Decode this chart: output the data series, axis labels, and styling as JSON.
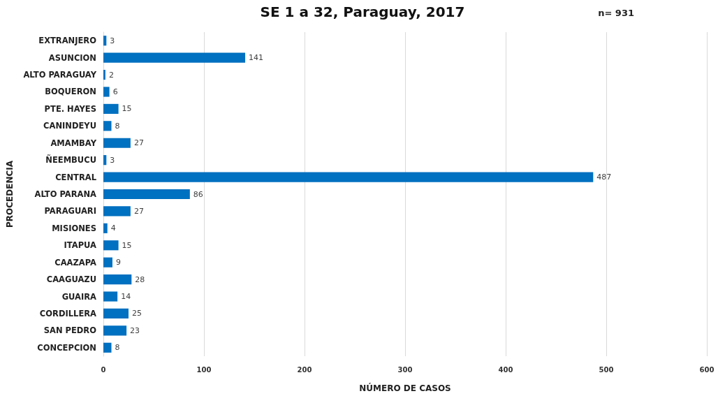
{
  "chart_data": {
    "type": "bar",
    "orientation": "horizontal",
    "title": "SE 1 a 32, Paraguay, 2017",
    "annotations": [
      "n= 931"
    ],
    "xlabel": "NÚMERO DE CASOS",
    "ylabel": "PROCEDENCIA",
    "categories": [
      "EXTRANJERO",
      "ASUNCION",
      "ALTO PARAGUAY",
      "BOQUERON",
      "PTE. HAYES",
      "CANINDEYU",
      "AMAMBAY",
      "ÑEEMBUCU",
      "CENTRAL",
      "ALTO PARANA",
      "PARAGUARI",
      "MISIONES",
      "ITAPUA",
      "CAAZAPA",
      "CAAGUAZU",
      "GUAIRA",
      "CORDILLERA",
      "SAN PEDRO",
      "CONCEPCION"
    ],
    "values": [
      3,
      141,
      2,
      6,
      15,
      8,
      27,
      3,
      487,
      86,
      27,
      4,
      15,
      9,
      28,
      14,
      25,
      23,
      8
    ],
    "color": "#0070c0",
    "xlim": [
      0,
      600
    ],
    "xticks": [
      0,
      100,
      200,
      300,
      400,
      500,
      600
    ],
    "grid": "x",
    "data_labels": true
  }
}
